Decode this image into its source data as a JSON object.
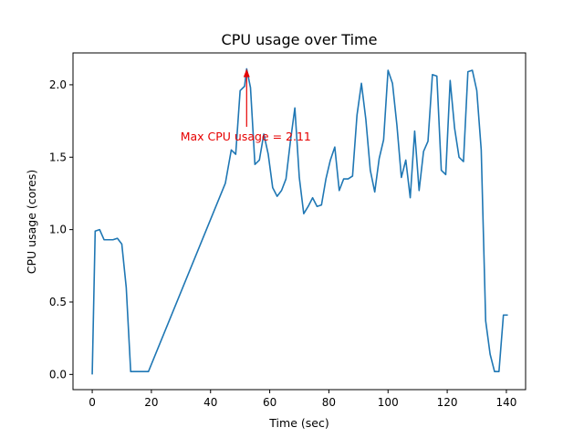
{
  "chart_data": {
    "type": "line",
    "title": "CPU usage over Time",
    "xlabel": "Time (sec)",
    "ylabel": "CPU usage (cores)",
    "xlim": [
      -6.5,
      146.5
    ],
    "ylim": [
      -0.105,
      2.22
    ],
    "xticks": [
      0,
      20,
      40,
      60,
      80,
      100,
      120,
      140
    ],
    "yticks": [
      0.0,
      0.5,
      1.0,
      1.5,
      2.0
    ],
    "xtick_labels": [
      "0",
      "20",
      "40",
      "60",
      "80",
      "100",
      "120",
      "140"
    ],
    "ytick_labels": [
      "0.0",
      "0.5",
      "1.0",
      "1.5",
      "2.0"
    ],
    "grid": false,
    "line_color": "#1f77b4",
    "annotation": {
      "text": "Max CPU usage = 2.11",
      "color": "#e60000",
      "point": [
        52.2,
        2.11
      ],
      "text_anchor_point": [
        52.2,
        1.71
      ]
    },
    "series": [
      {
        "x": [
          0,
          1,
          2.5,
          4,
          5.5,
          7,
          8.5,
          10,
          11.5,
          13,
          14.5,
          16,
          17.5,
          19,
          45,
          47,
          48.5,
          50,
          51.5,
          52.2,
          53.5,
          55,
          56.5,
          58,
          59.5,
          61,
          62.5,
          64,
          65.5,
          67,
          68.5,
          70,
          71.5,
          73,
          74.5,
          76,
          77.5,
          79,
          80.5,
          82,
          83.5,
          85,
          86.5,
          88,
          89.5,
          91,
          92.5,
          94,
          95.5,
          97,
          98.5,
          100,
          101.5,
          103,
          104.5,
          106,
          107.5,
          109,
          110.5,
          112,
          113.5,
          115,
          116.5,
          118,
          119.5,
          121,
          122.5,
          124,
          125.5,
          127,
          128.5,
          130,
          131.5,
          133,
          134.5,
          136,
          137.5,
          139,
          140.5
        ],
        "y": [
          0.0,
          0.99,
          1.0,
          0.93,
          0.93,
          0.93,
          0.94,
          0.9,
          0.6,
          0.02,
          0.02,
          0.02,
          0.02,
          0.02,
          1.32,
          1.55,
          1.52,
          1.96,
          1.99,
          2.11,
          1.98,
          1.45,
          1.48,
          1.66,
          1.52,
          1.29,
          1.23,
          1.27,
          1.35,
          1.61,
          1.84,
          1.36,
          1.11,
          1.16,
          1.22,
          1.16,
          1.17,
          1.35,
          1.48,
          1.57,
          1.27,
          1.35,
          1.35,
          1.37,
          1.79,
          2.01,
          1.76,
          1.41,
          1.26,
          1.49,
          1.62,
          2.1,
          2.01,
          1.72,
          1.36,
          1.48,
          1.22,
          1.68,
          1.27,
          1.54,
          1.61,
          2.07,
          2.06,
          1.41,
          1.38,
          2.03,
          1.7,
          1.5,
          1.47,
          2.09,
          2.1,
          1.96,
          1.55,
          0.37,
          0.14,
          0.02,
          0.02,
          0.41,
          0.41
        ]
      }
    ]
  }
}
